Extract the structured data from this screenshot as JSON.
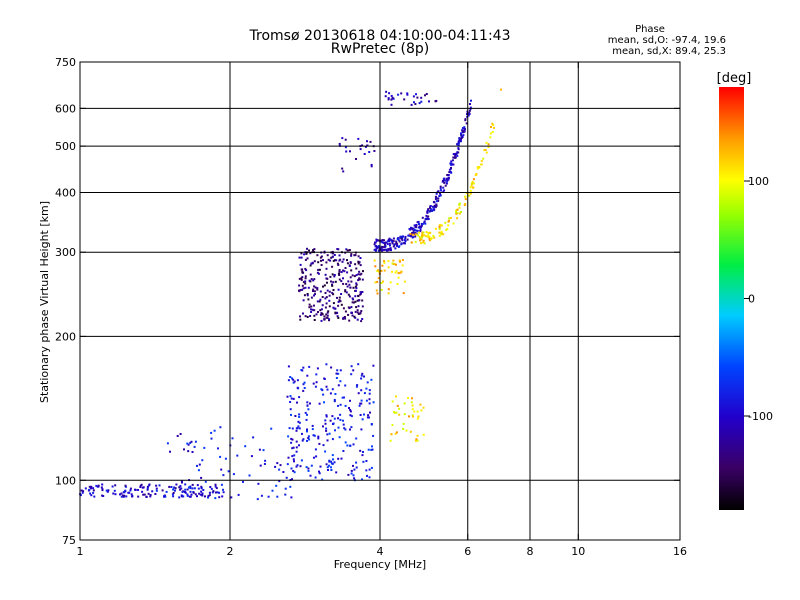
{
  "chart_data": {
    "type": "scatter",
    "title": "Tromsø 20130618 04:10:00-04:11:43",
    "subtitle": "RwPretec (8p)",
    "xlabel": "Frequency [MHz]",
    "ylabel": "Stationary phase Virtual Height [km]",
    "x_scale": "log2",
    "y_scale": "log",
    "xlim": [
      1,
      16
    ],
    "ylim": [
      75,
      750
    ],
    "x_ticks": [
      1,
      2,
      4,
      6,
      8,
      10,
      16
    ],
    "y_ticks": [
      75,
      100,
      200,
      300,
      400,
      500,
      600,
      750
    ],
    "grid": true,
    "phase_info": {
      "heading": "Phase",
      "line1": "mean, sd,O: -97.4, 19.6",
      "line2": "mean, sd,X:  89.4, 25.3"
    },
    "colorbar": {
      "label": "[deg]",
      "range": [
        -180,
        180
      ],
      "ticks": [
        "100",
        "0",
        "-100"
      ],
      "tick_values": [
        100,
        0,
        -100
      ]
    },
    "clusters": [
      {
        "mode": "O",
        "x": [
          1.0,
          1.95
        ],
        "y": [
          92,
          98
        ],
        "phase": -100,
        "count": 150
      },
      {
        "mode": "O",
        "x": [
          1.5,
          2.8
        ],
        "y": [
          90,
          130
        ],
        "phase": -90,
        "count": 90
      },
      {
        "mode": "O",
        "x": [
          2.6,
          3.9
        ],
        "y": [
          100,
          175
        ],
        "phase": -85,
        "count": 250
      },
      {
        "mode": "X",
        "x": [
          4.2,
          4.9
        ],
        "y": [
          120,
          150
        ],
        "phase": 110,
        "count": 40
      },
      {
        "mode": "O",
        "x": [
          2.75,
          3.7
        ],
        "y": [
          215,
          305
        ],
        "phase": -135,
        "count": 320
      },
      {
        "mode": "X",
        "x": [
          3.9,
          4.5
        ],
        "y": [
          245,
          290
        ],
        "phase": 115,
        "count": 45
      },
      {
        "mode": "O",
        "x": [
          3.9,
          6.1
        ],
        "y": [
          310,
          620
        ],
        "phase": -105,
        "count": 300,
        "trace": true
      },
      {
        "mode": "X",
        "x": [
          4.6,
          7.0
        ],
        "y": [
          320,
          640
        ],
        "phase": 110,
        "count": 120,
        "trace": true
      },
      {
        "mode": "O",
        "x": [
          4.1,
          5.2
        ],
        "y": [
          600,
          650
        ],
        "phase": -110,
        "count": 30
      },
      {
        "mode": "O",
        "x": [
          3.3,
          3.9
        ],
        "y": [
          440,
          520
        ],
        "phase": -110,
        "count": 25
      }
    ]
  }
}
